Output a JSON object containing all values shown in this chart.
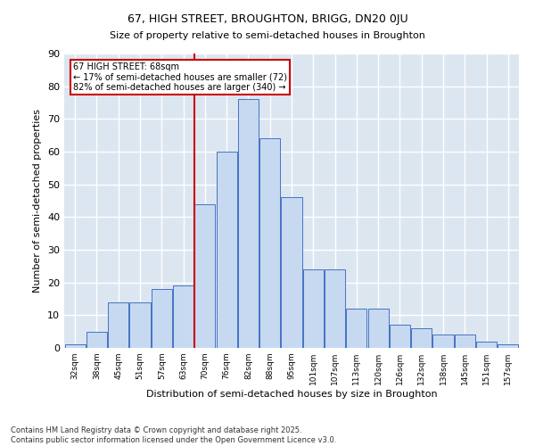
{
  "title": "67, HIGH STREET, BROUGHTON, BRIGG, DN20 0JU",
  "subtitle": "Size of property relative to semi-detached houses in Broughton",
  "xlabel": "Distribution of semi-detached houses by size in Broughton",
  "ylabel": "Number of semi-detached properties",
  "footer": "Contains HM Land Registry data © Crown copyright and database right 2025.\nContains public sector information licensed under the Open Government Licence v3.0.",
  "categories": [
    "32sqm",
    "38sqm",
    "45sqm",
    "51sqm",
    "57sqm",
    "63sqm",
    "70sqm",
    "76sqm",
    "82sqm",
    "88sqm",
    "95sqm",
    "101sqm",
    "107sqm",
    "113sqm",
    "120sqm",
    "126sqm",
    "132sqm",
    "138sqm",
    "145sqm",
    "151sqm",
    "157sqm"
  ],
  "values": [
    1,
    5,
    14,
    14,
    18,
    19,
    44,
    60,
    76,
    64,
    46,
    24,
    24,
    12,
    12,
    7,
    6,
    4,
    4,
    2,
    1
  ],
  "bar_color": "#c6d9f0",
  "bar_edge_color": "#4472c4",
  "bg_color": "#dce6f1",
  "grid_color": "#ffffff",
  "vline_label": "67 HIGH STREET: 68sqm",
  "annotation_smaller": "← 17% of semi-detached houses are smaller (72)",
  "annotation_larger": "82% of semi-detached houses are larger (340) →",
  "box_color": "#cc0000",
  "ylim": [
    0,
    90
  ],
  "yticks": [
    0,
    10,
    20,
    30,
    40,
    50,
    60,
    70,
    80,
    90
  ]
}
